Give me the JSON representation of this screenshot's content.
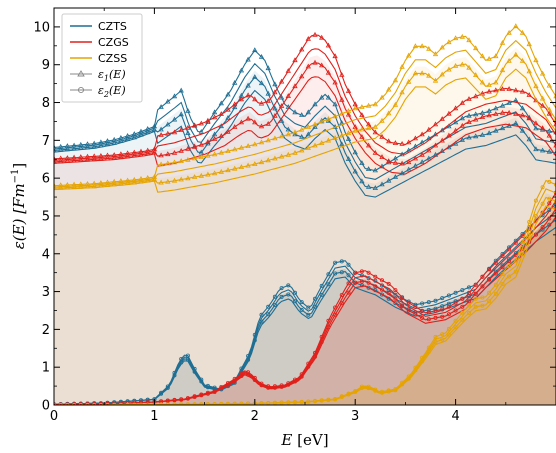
{
  "chart_data": {
    "type": "line",
    "xlabel_var": "E",
    "xlabel_unit": "[eV]",
    "ylabel_main": "ε(E) [Fm",
    "ylabel_sup": "−1",
    "ylabel_close": "]",
    "xlim": [
      0,
      5
    ],
    "ylim": [
      0,
      10.5
    ],
    "xticks": [
      0,
      1,
      2,
      3,
      4
    ],
    "yticks": [
      0,
      1,
      2,
      3,
      4,
      5,
      6,
      7,
      8,
      9,
      10
    ],
    "legend": {
      "placement": "top-left",
      "entries": [
        {
          "label": "CZTS",
          "color": "#1f6f94"
        },
        {
          "label": "CZGS",
          "color": "#e0201b"
        },
        {
          "label": "CZSS",
          "color": "#e6a400"
        }
      ],
      "markers": [
        {
          "label_prefix": "ε",
          "label_sub": "1",
          "label_suffix": "(E)",
          "marker": "triangle"
        },
        {
          "label_prefix": "ε",
          "label_sub": "2",
          "label_suffix": "(E)",
          "marker": "circle"
        }
      ]
    },
    "series": [
      {
        "name": "CZTS",
        "component": "eps1",
        "color": "#1f6f94",
        "x": [
          0,
          0.2,
          0.4,
          0.6,
          0.8,
          1.0,
          1.1,
          1.2,
          1.27,
          1.35,
          1.45,
          1.6,
          1.75,
          1.9,
          2.0,
          2.1,
          2.2,
          2.3,
          2.4,
          2.5,
          2.6,
          2.7,
          2.8,
          2.9,
          3.0,
          3.1,
          3.2,
          3.3,
          3.5,
          3.7,
          3.9,
          4.1,
          4.3,
          4.5,
          4.6,
          4.7,
          4.8,
          5.0
        ],
        "y": [
          6.75,
          6.8,
          6.85,
          6.95,
          7.1,
          7.3,
          7.5,
          7.7,
          7.85,
          7.2,
          6.75,
          7.3,
          7.8,
          8.5,
          8.85,
          8.6,
          8.0,
          7.5,
          7.3,
          7.2,
          7.5,
          7.75,
          7.5,
          6.8,
          6.3,
          5.9,
          5.85,
          6.0,
          6.3,
          6.6,
          6.9,
          7.2,
          7.3,
          7.5,
          7.6,
          7.3,
          6.9,
          6.8
        ]
      },
      {
        "name": "CZTS",
        "component": "eps2",
        "color": "#1f6f94",
        "x": [
          0,
          0.5,
          1.0,
          1.15,
          1.25,
          1.32,
          1.4,
          1.5,
          1.65,
          1.8,
          1.95,
          2.05,
          2.15,
          2.25,
          2.35,
          2.45,
          2.55,
          2.65,
          2.8,
          2.9,
          3.0,
          3.2,
          3.4,
          3.6,
          3.8,
          4.0,
          4.2,
          4.4,
          4.6,
          4.8,
          5.0
        ],
        "y": [
          0.02,
          0.05,
          0.15,
          0.5,
          1.1,
          1.3,
          0.9,
          0.5,
          0.4,
          0.6,
          1.3,
          2.2,
          2.5,
          2.9,
          3.0,
          2.6,
          2.4,
          2.9,
          3.55,
          3.6,
          3.3,
          3.1,
          2.75,
          2.5,
          2.6,
          2.8,
          3.0,
          3.6,
          4.1,
          4.6,
          5.0
        ]
      },
      {
        "name": "CZGS",
        "component": "eps1",
        "color": "#e0201b",
        "x": [
          0,
          0.3,
          0.6,
          0.9,
          1.2,
          1.5,
          1.7,
          1.85,
          1.95,
          2.05,
          2.15,
          2.3,
          2.45,
          2.55,
          2.62,
          2.7,
          2.8,
          2.9,
          3.0,
          3.1,
          3.2,
          3.35,
          3.5,
          3.7,
          3.9,
          4.1,
          4.3,
          4.5,
          4.7,
          4.9,
          5.0
        ],
        "y": [
          6.45,
          6.5,
          6.55,
          6.65,
          6.8,
          7.05,
          7.3,
          7.6,
          7.75,
          7.5,
          7.6,
          8.2,
          8.8,
          9.2,
          9.25,
          9.1,
          8.7,
          8.0,
          7.5,
          7.1,
          6.8,
          6.55,
          6.5,
          6.8,
          7.2,
          7.6,
          7.8,
          7.9,
          7.8,
          7.4,
          7.0
        ]
      },
      {
        "name": "CZGS",
        "component": "eps2",
        "color": "#e0201b",
        "x": [
          0,
          0.5,
          1.0,
          1.3,
          1.6,
          1.8,
          1.9,
          1.95,
          2.05,
          2.15,
          2.3,
          2.45,
          2.6,
          2.75,
          2.9,
          3.0,
          3.1,
          3.2,
          3.35,
          3.5,
          3.7,
          3.9,
          4.1,
          4.3,
          4.5,
          4.7,
          4.9,
          5.0
        ],
        "y": [
          0.01,
          0.03,
          0.08,
          0.15,
          0.35,
          0.65,
          0.85,
          0.8,
          0.55,
          0.45,
          0.5,
          0.7,
          1.3,
          2.2,
          2.9,
          3.3,
          3.35,
          3.2,
          3.0,
          2.6,
          2.3,
          2.4,
          2.7,
          3.3,
          3.8,
          4.3,
          4.9,
          5.3
        ]
      },
      {
        "name": "CZSS",
        "component": "eps1",
        "color": "#e6a400",
        "x": [
          0,
          0.4,
          0.8,
          1.2,
          1.6,
          2.0,
          2.4,
          2.8,
          3.0,
          3.1,
          3.2,
          3.3,
          3.4,
          3.5,
          3.6,
          3.7,
          3.8,
          3.9,
          4.0,
          4.1,
          4.2,
          4.3,
          4.4,
          4.5,
          4.6,
          4.7,
          4.8,
          4.9,
          5.0
        ],
        "y": [
          5.75,
          5.8,
          5.9,
          6.05,
          6.25,
          6.5,
          6.8,
          7.2,
          7.4,
          7.45,
          7.5,
          7.75,
          8.1,
          8.6,
          8.95,
          8.95,
          8.75,
          9.0,
          9.15,
          9.2,
          8.9,
          8.6,
          8.7,
          9.2,
          9.45,
          9.2,
          8.6,
          8.1,
          7.7
        ]
      },
      {
        "name": "CZSS",
        "component": "eps2",
        "color": "#e6a400",
        "x": [
          0,
          0.5,
          1.0,
          1.5,
          2.0,
          2.5,
          2.8,
          3.0,
          3.08,
          3.15,
          3.25,
          3.4,
          3.55,
          3.7,
          3.8,
          3.9,
          4.0,
          4.1,
          4.2,
          4.3,
          4.4,
          4.5,
          4.6,
          4.7,
          4.8,
          4.9,
          5.0
        ],
        "y": [
          0.0,
          0.0,
          0.01,
          0.02,
          0.04,
          0.08,
          0.15,
          0.35,
          0.48,
          0.45,
          0.32,
          0.4,
          0.75,
          1.3,
          1.7,
          1.8,
          2.1,
          2.4,
          2.65,
          2.7,
          3.0,
          3.4,
          3.6,
          4.3,
          5.1,
          5.6,
          5.5
        ]
      }
    ]
  }
}
